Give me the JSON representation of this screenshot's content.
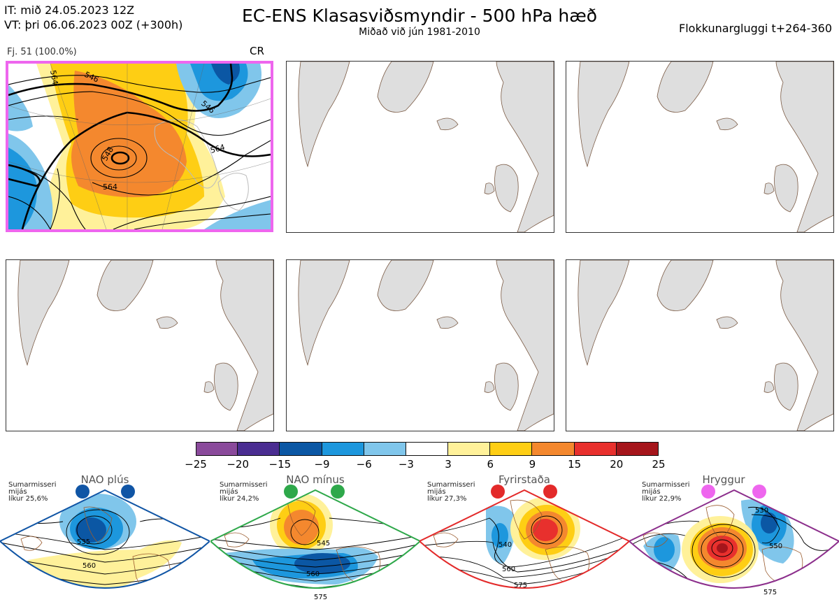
{
  "header": {
    "issue_time": "IT: mið 24.05.2023 12Z",
    "valid_time": "VT: þri 06.06.2023 00Z  (+300h)",
    "title": "EC-ENS Klasasviðsmyndir - 500 hPa hæð",
    "subtitle": "Miðað við jún 1981-2010",
    "window": "Flokkunargluggi t+264-360"
  },
  "cluster_panel": {
    "label": "Fj. 51 (100.0%)",
    "regime_code": "CR",
    "frame_color": "#ee66ee",
    "contour_labels": [
      "546",
      "564",
      "546",
      "548",
      "564",
      "564"
    ]
  },
  "legend": {
    "ticks": [
      "−25",
      "−20",
      "−15",
      "−9",
      "−6",
      "−3",
      "3",
      "6",
      "9",
      "15",
      "20",
      "25"
    ],
    "colors": [
      "#8a4a9b",
      "#4a2d91",
      "#0b57a4",
      "#1d97dd",
      "#80c6eb",
      "#ffffff",
      "#fff19a",
      "#fece14",
      "#f4882e",
      "#e8302d",
      "#a5151b"
    ]
  },
  "regimes": [
    {
      "name": "NAO plús",
      "season": "Sumarmisseri",
      "mean": "mijás",
      "prob": "líkur 25,6%",
      "color": "#1055a5",
      "dots": [
        "#1055a5",
        "#1055a5"
      ],
      "contours": [
        "535",
        "560"
      ]
    },
    {
      "name": "NAO mínus",
      "season": "Sumarmisseri",
      "mean": "mijás",
      "prob": "líkur 24,2%",
      "color": "#2ea84a",
      "dots": [
        "#2ea84a",
        "#2ea84a"
      ],
      "contours": [
        "545",
        "560",
        "575"
      ]
    },
    {
      "name": "Fyrirstaða",
      "season": "Sumarmisseri",
      "mean": "mijás",
      "prob": "líkur 27,3%",
      "color": "#e32a2a",
      "dots": [
        "#e32a2a",
        "#e32a2a"
      ],
      "contours": [
        "540",
        "560",
        "575"
      ]
    },
    {
      "name": "Hryggur",
      "season": "Sumarmisseri",
      "mean": "mijás",
      "prob": "líkur 22,9%",
      "color": "#8c2f8c",
      "dots": [
        "#ee66ee",
        "#ee66ee"
      ],
      "contours": [
        "530",
        "550",
        "575"
      ]
    }
  ]
}
